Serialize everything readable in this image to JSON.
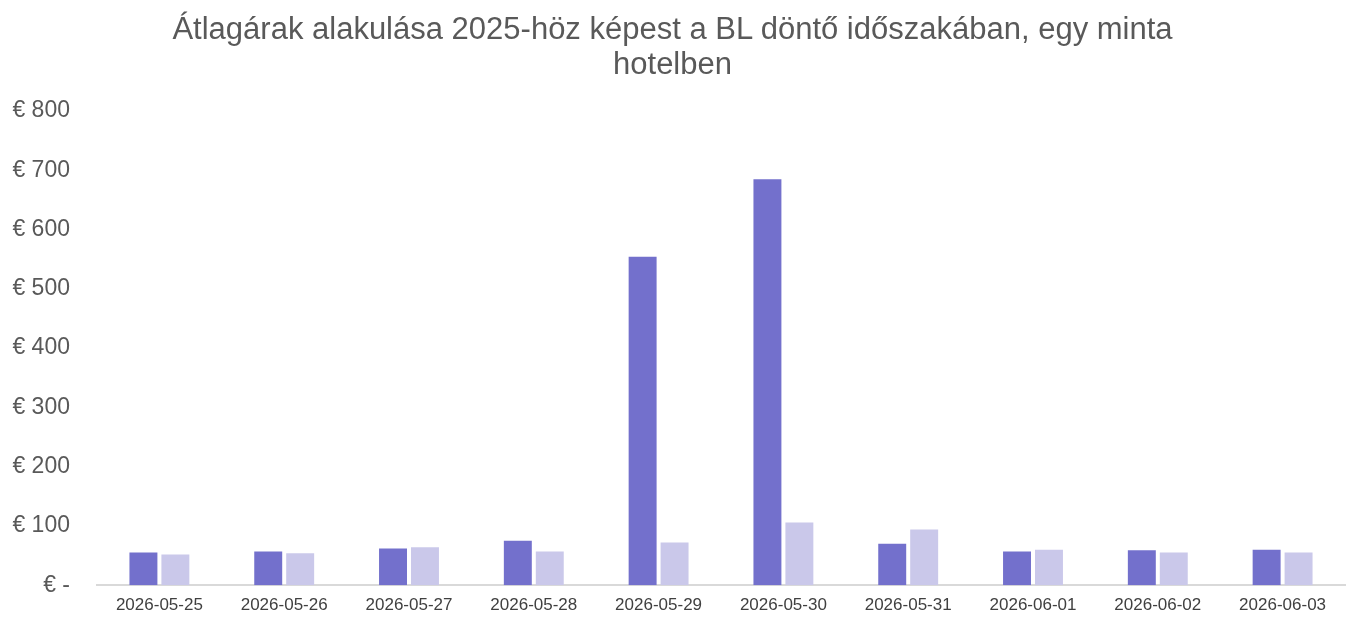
{
  "chart_data": {
    "type": "bar",
    "title": "Átlagárak alakulása 2025-höz képest a BL döntő időszakában, egy minta hotelben",
    "categories": [
      "2026-05-25",
      "2026-05-26",
      "2026-05-27",
      "2026-05-28",
      "2026-05-29",
      "2026-05-30",
      "2026-05-31",
      "2026-06-01",
      "2026-06-02",
      "2026-06-03"
    ],
    "series": [
      {
        "color": "#7370cc",
        "values": [
          55,
          57,
          62,
          75,
          554,
          685,
          70,
          57,
          59,
          60
        ]
      },
      {
        "color": "#cac8ea",
        "values": [
          52,
          54,
          64,
          57,
          72,
          106,
          94,
          60,
          55,
          55
        ]
      }
    ],
    "ylim": [
      0,
      800
    ],
    "yticks": [
      {
        "value": 0,
        "label": "€ -"
      },
      {
        "value": 100,
        "label": "€ 100"
      },
      {
        "value": 200,
        "label": "€ 200"
      },
      {
        "value": 300,
        "label": "€ 300"
      },
      {
        "value": 400,
        "label": "€ 400"
      },
      {
        "value": 500,
        "label": "€ 500"
      },
      {
        "value": 600,
        "label": "€ 600"
      },
      {
        "value": 700,
        "label": "€ 700"
      },
      {
        "value": 800,
        "label": "€ 800"
      }
    ]
  }
}
